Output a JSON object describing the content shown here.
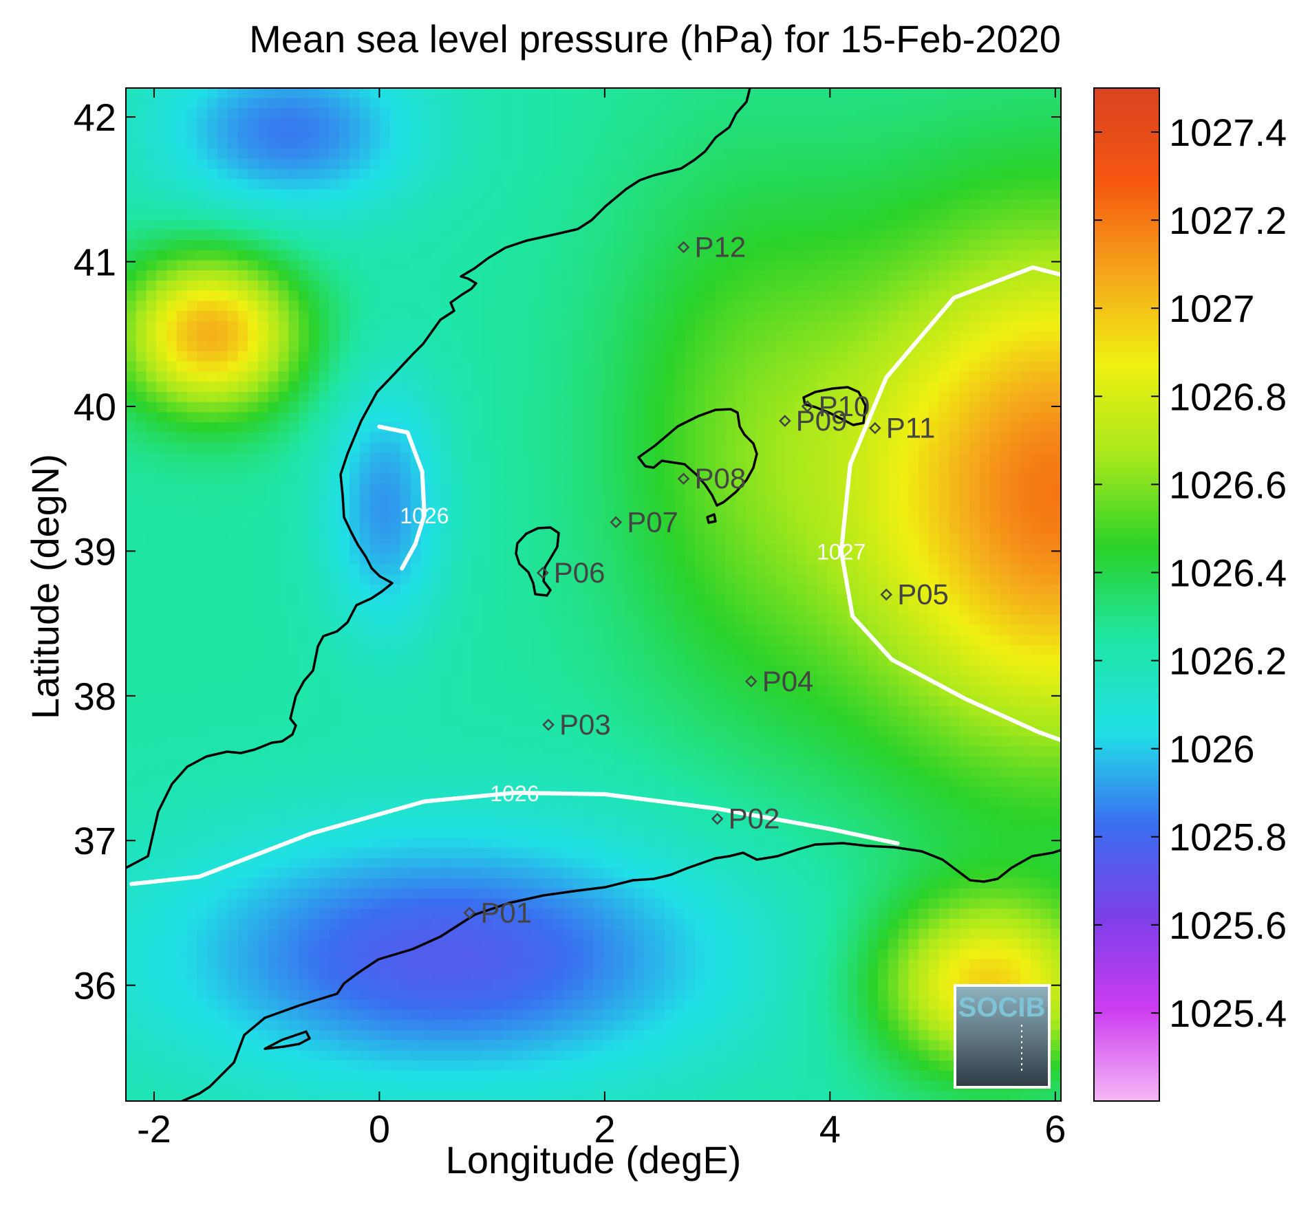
{
  "title": "Mean sea level pressure (hPa) for 15-Feb-2020",
  "chart_data": {
    "type": "heatmap",
    "title": "Mean sea level pressure (hPa) for 15-Feb-2020",
    "xlabel": "Longitude (degE)",
    "ylabel": "Latitude (degN)",
    "xlim": [
      -2.25,
      6.05
    ],
    "ylim": [
      35.2,
      42.2
    ],
    "xticks": [
      -2,
      0,
      2,
      4,
      6
    ],
    "xtick_labels": [
      "-2",
      "0",
      "2",
      "4",
      "6"
    ],
    "yticks": [
      36,
      37,
      38,
      39,
      40,
      41,
      42
    ],
    "ytick_labels": [
      "36",
      "37",
      "38",
      "39",
      "40",
      "41",
      "42"
    ],
    "colorbar": {
      "range": [
        1025.2,
        1027.5
      ],
      "ticks": [
        1025.4,
        1025.6,
        1025.8,
        1026,
        1026.2,
        1026.4,
        1026.6,
        1026.8,
        1027,
        1027.2,
        1027.4
      ],
      "tick_labels": [
        "1025.4",
        "1025.6",
        "1025.8",
        "1026",
        "1026.2",
        "1026.4",
        "1026.6",
        "1026.8",
        "1027",
        "1027.2",
        "1027.4"
      ],
      "colors": [
        "#f5b8f5",
        "#cc3cf0",
        "#7c3fe8",
        "#3a6ef0",
        "#20e0e6",
        "#1fe6a6",
        "#2ad22a",
        "#a6e81c",
        "#f0f011",
        "#f5a51c",
        "#f5560f",
        "#d94422"
      ]
    },
    "contours": [
      {
        "level": 1026,
        "label": "1026",
        "lon": [
          -2.2,
          -1.6,
          -0.6,
          0.4,
          1.2,
          2.0,
          3.0,
          4.0,
          4.6
        ],
        "lat": [
          36.7,
          36.75,
          37.05,
          37.27,
          37.33,
          37.32,
          37.22,
          37.08,
          36.98
        ]
      },
      {
        "level": 1026,
        "label": "1026",
        "lon": [
          0.0,
          0.25,
          0.38,
          0.4,
          0.32,
          0.2
        ],
        "lat": [
          39.86,
          39.82,
          39.55,
          39.25,
          39.05,
          38.88
        ]
      },
      {
        "level": 1027,
        "label": "1027",
        "lon": [
          6.1,
          5.8,
          5.1,
          4.5,
          4.18,
          4.1,
          4.2,
          4.55,
          5.2,
          5.85,
          6.1
        ],
        "lat": [
          40.9,
          40.96,
          40.75,
          40.2,
          39.6,
          39.0,
          38.55,
          38.25,
          37.98,
          37.75,
          37.68
        ]
      }
    ],
    "stations": [
      {
        "name": "P01",
        "lon": 0.8,
        "lat": 36.5
      },
      {
        "name": "P02",
        "lon": 3.0,
        "lat": 37.15
      },
      {
        "name": "P03",
        "lon": 1.5,
        "lat": 37.8
      },
      {
        "name": "P04",
        "lon": 3.3,
        "lat": 38.1
      },
      {
        "name": "P05",
        "lon": 4.5,
        "lat": 38.7
      },
      {
        "name": "P06",
        "lon": 1.45,
        "lat": 38.85
      },
      {
        "name": "P07",
        "lon": 2.1,
        "lat": 39.2
      },
      {
        "name": "P08",
        "lon": 2.7,
        "lat": 39.5
      },
      {
        "name": "P09",
        "lon": 3.6,
        "lat": 39.9
      },
      {
        "name": "P10",
        "lon": 3.8,
        "lat": 40.0
      },
      {
        "name": "P11",
        "lon": 4.4,
        "lat": 39.85
      },
      {
        "name": "P12",
        "lon": 2.7,
        "lat": 41.1
      }
    ]
  },
  "logo": {
    "text": "SOCIB"
  }
}
